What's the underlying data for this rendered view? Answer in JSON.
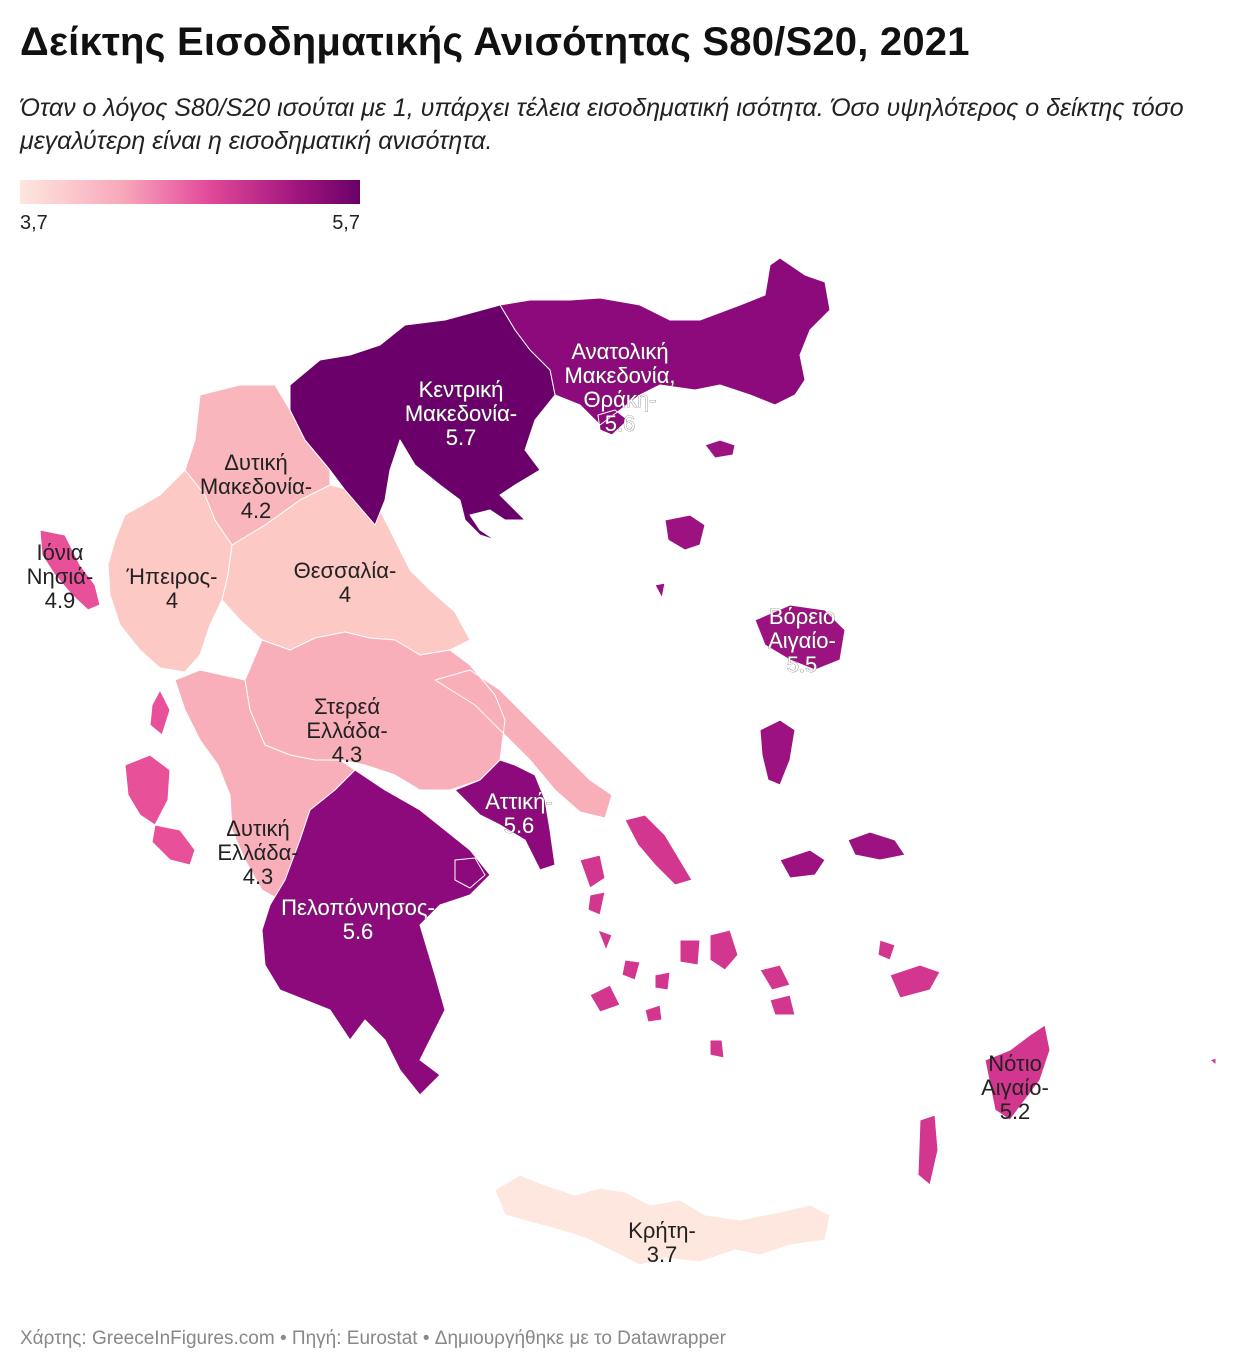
{
  "title": "Δείκτης Εισοδηματικής Ανισότητας S80/S20, 2021",
  "subtitle": "Όταν ο λόγος S80/S20 ισούται με 1, υπάρχει τέλεια εισοδηματική ισότητα. Όσο υψηλότερος ο δείκτης τόσο μεγαλύτερη είναι η εισοδηματική ανισότητα.",
  "legend": {
    "min_label": "3,7",
    "max_label": "5,7",
    "min": 3.7,
    "max": 5.7
  },
  "colors": {
    "c37": "#fde7df",
    "c40": "#fcc9c4",
    "c42": "#f9b7bd",
    "c43": "#f8afba",
    "c49": "#e8509a",
    "c52": "#d3368e",
    "c55": "#9c1280",
    "c56": "#8c0a7c",
    "c57": "#6b006b"
  },
  "regions": [
    {
      "name": "Κρήτη",
      "value": 3.7,
      "lines": [
        "Κρήτη-",
        "3.7"
      ]
    },
    {
      "name": "Ήπειρος",
      "value": 4,
      "lines": [
        "Ήπειρος-",
        "4"
      ]
    },
    {
      "name": "Θεσσαλία",
      "value": 4,
      "lines": [
        "Θεσσαλία-",
        "4"
      ]
    },
    {
      "name": "Δυτική Μακεδονία",
      "value": 4.2,
      "lines": [
        "Δυτική",
        "Μακεδονία-",
        "4.2"
      ]
    },
    {
      "name": "Στερεά Ελλάδα",
      "value": 4.3,
      "lines": [
        "Στερεά",
        "Ελλάδα-",
        "4.3"
      ]
    },
    {
      "name": "Δυτική Ελλάδα",
      "value": 4.3,
      "lines": [
        "Δυτική",
        "Ελλάδα-",
        "4.3"
      ]
    },
    {
      "name": "Ιόνια Νησιά",
      "value": 4.9,
      "lines": [
        "Ιόνια",
        "Νησιά-",
        "4.9"
      ]
    },
    {
      "name": "Νότιο Αιγαίο",
      "value": 5.2,
      "lines": [
        "Νότιο",
        "Αιγαίο-",
        "5.2"
      ]
    },
    {
      "name": "Βόρειο Αιγαίο",
      "value": 5.5,
      "lines": [
        "Βόρειο",
        "Αιγαίο-",
        "5.5"
      ]
    },
    {
      "name": "Ανατολική Μακεδονία, Θράκη",
      "value": 5.6,
      "lines": [
        "Ανατολική",
        "Μακεδονία,",
        "Θράκη-",
        "5.6"
      ]
    },
    {
      "name": "Αττική",
      "value": 5.6,
      "lines": [
        "Αττική-",
        "5.6"
      ]
    },
    {
      "name": "Πελοπόννησος",
      "value": 5.6,
      "lines": [
        "Πελοπόννησος-",
        "5.6"
      ]
    },
    {
      "name": "Κεντρική Μακεδονία",
      "value": 5.7,
      "lines": [
        "Κεντρική",
        "Μακεδονία-",
        "5.7"
      ]
    }
  ],
  "footer": "Χάρτης: GreeceInFigures.com • Πηγή: Eurostat • Δημιουργήθηκε με το Datawrapper"
}
